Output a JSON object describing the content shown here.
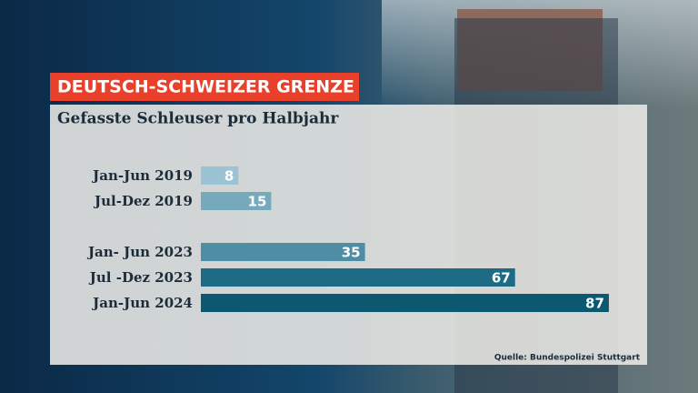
{
  "chart_data": {
    "type": "bar",
    "orientation": "horizontal",
    "tag": "DEUTSCH-SCHWEIZER GRENZE",
    "title": "Gefasste Schleuser pro Halbjahr",
    "categories": [
      "Jan-Jun 2019",
      "Jul-Dez 2019",
      "Jan- Jun 2023",
      "Jul -Dez 2023",
      "Jan-Jun 2024"
    ],
    "values": [
      8,
      15,
      35,
      67,
      87
    ],
    "colors": [
      "#9cc3d3",
      "#77a9bd",
      "#4f8da4",
      "#1d6b84",
      "#0b5870"
    ],
    "source": "Quelle: Bundespolizei Stuttgart"
  }
}
